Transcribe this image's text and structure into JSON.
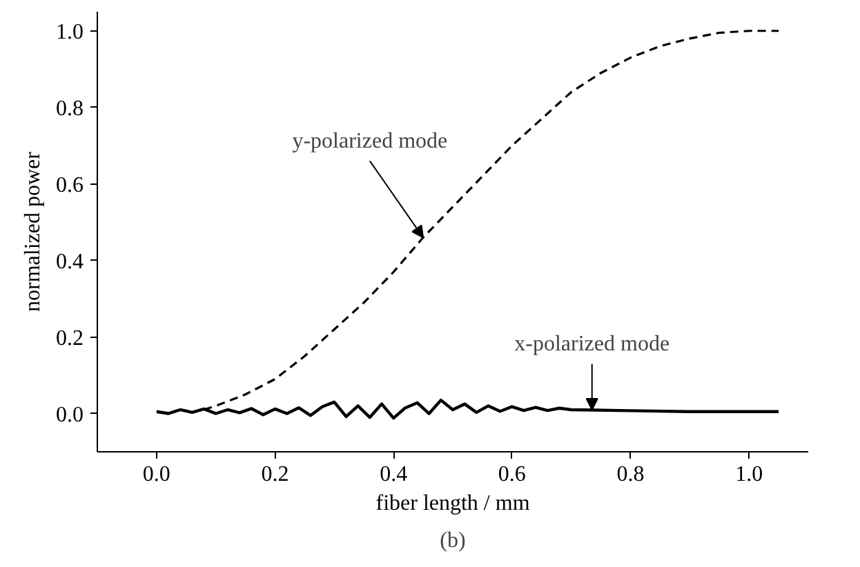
{
  "chart_data": {
    "type": "line",
    "xlabel": "fiber length / mm",
    "ylabel": "normalized power",
    "xlim": [
      -0.1,
      1.1
    ],
    "ylim": [
      -0.1,
      1.05
    ],
    "xticks": [
      {
        "value": 0,
        "label": "0.0"
      },
      {
        "value": 0.2,
        "label": "0.2"
      },
      {
        "value": 0.4,
        "label": "0.4"
      },
      {
        "value": 0.6,
        "label": "0.6"
      },
      {
        "value": 0.8,
        "label": "0.8"
      },
      {
        "value": 1,
        "label": "1.0"
      }
    ],
    "yticks": [
      {
        "value": 0,
        "label": "0.0"
      },
      {
        "value": 0.2,
        "label": "0.2"
      },
      {
        "value": 0.4,
        "label": "0.4"
      },
      {
        "value": 0.6,
        "label": "0.6"
      },
      {
        "value": 0.8,
        "label": "0.8"
      },
      {
        "value": 1,
        "label": "1.0"
      }
    ],
    "grid": false,
    "marker": "none",
    "series": [
      {
        "color": "#000000",
        "line_style": "dashed",
        "x": [
          0.08,
          0.1,
          0.15,
          0.2,
          0.25,
          0.3,
          0.35,
          0.4,
          0.45,
          0.5,
          0.55,
          0.6,
          0.65,
          0.7,
          0.75,
          0.8,
          0.85,
          0.9,
          0.95,
          1.0,
          1.05
        ],
        "values": [
          0.01,
          0.02,
          0.05,
          0.09,
          0.15,
          0.22,
          0.29,
          0.37,
          0.46,
          0.54,
          0.62,
          0.7,
          0.77,
          0.84,
          0.89,
          0.93,
          0.96,
          0.98,
          0.995,
          1.0,
          1.0
        ]
      },
      {
        "color": "#000000",
        "line_style": "solid",
        "x": [
          0.0,
          0.02,
          0.04,
          0.06,
          0.08,
          0.1,
          0.12,
          0.14,
          0.16,
          0.18,
          0.2,
          0.22,
          0.24,
          0.26,
          0.28,
          0.3,
          0.32,
          0.34,
          0.36,
          0.38,
          0.4,
          0.42,
          0.44,
          0.46,
          0.48,
          0.5,
          0.52,
          0.54,
          0.56,
          0.58,
          0.6,
          0.62,
          0.64,
          0.66,
          0.68,
          0.7,
          0.74,
          0.78,
          0.82,
          0.9,
          1.05
        ],
        "values": [
          0.005,
          0.0,
          0.01,
          0.003,
          0.012,
          0.0,
          0.01,
          0.002,
          0.013,
          -0.003,
          0.012,
          0.0,
          0.015,
          -0.005,
          0.018,
          0.03,
          -0.008,
          0.02,
          -0.01,
          0.025,
          -0.012,
          0.015,
          0.028,
          0.0,
          0.035,
          0.01,
          0.025,
          0.003,
          0.02,
          0.006,
          0.018,
          0.008,
          0.016,
          0.008,
          0.014,
          0.01,
          0.009,
          0.008,
          0.007,
          0.005,
          0.005
        ]
      }
    ],
    "annotations": [
      {
        "text": "y-polarized mode",
        "x": 0.45,
        "y": 0.46
      },
      {
        "text": "x-polarized mode",
        "x": 0.735,
        "y": 0.01
      },
      "(b)"
    ]
  }
}
